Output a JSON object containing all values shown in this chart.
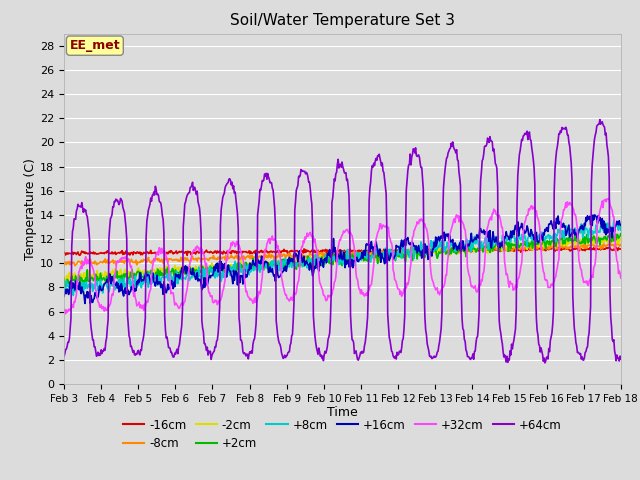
{
  "title": "Soil/Water Temperature Set 3",
  "xlabel": "Time",
  "ylabel": "Temperature (C)",
  "ylim": [
    0,
    29
  ],
  "yticks": [
    0,
    2,
    4,
    6,
    8,
    10,
    12,
    14,
    16,
    18,
    20,
    22,
    24,
    26,
    28
  ],
  "background_color": "#dcdcdc",
  "plot_bg_color": "#dcdcdc",
  "annotation_text": "EE_met",
  "annotation_color": "#8b0000",
  "annotation_bg": "#ffff99",
  "series": {
    "-16cm": {
      "color": "#dd0000",
      "linewidth": 1.2
    },
    "-8cm": {
      "color": "#ff8800",
      "linewidth": 1.2
    },
    "-2cm": {
      "color": "#dddd00",
      "linewidth": 1.2
    },
    "+2cm": {
      "color": "#00bb00",
      "linewidth": 1.2
    },
    "+8cm": {
      "color": "#00cccc",
      "linewidth": 1.2
    },
    "+16cm": {
      "color": "#0000bb",
      "linewidth": 1.2
    },
    "+32cm": {
      "color": "#ff44ff",
      "linewidth": 1.2
    },
    "+64cm": {
      "color": "#8800cc",
      "linewidth": 1.2
    }
  },
  "x_start": 3,
  "x_end": 18,
  "x_ticks": [
    3,
    4,
    5,
    6,
    7,
    8,
    9,
    10,
    11,
    12,
    13,
    14,
    15,
    16,
    17,
    18
  ],
  "x_tick_labels": [
    "Feb 3",
    "Feb 4",
    "Feb 5",
    "Feb 6",
    "Feb 7",
    "Feb 8",
    "Feb 9",
    "Feb 10",
    "Feb 11",
    "Feb 12",
    "Feb 13",
    "Feb 14",
    "Feb 15",
    "Feb 16",
    "Feb 17",
    "Feb 18"
  ]
}
